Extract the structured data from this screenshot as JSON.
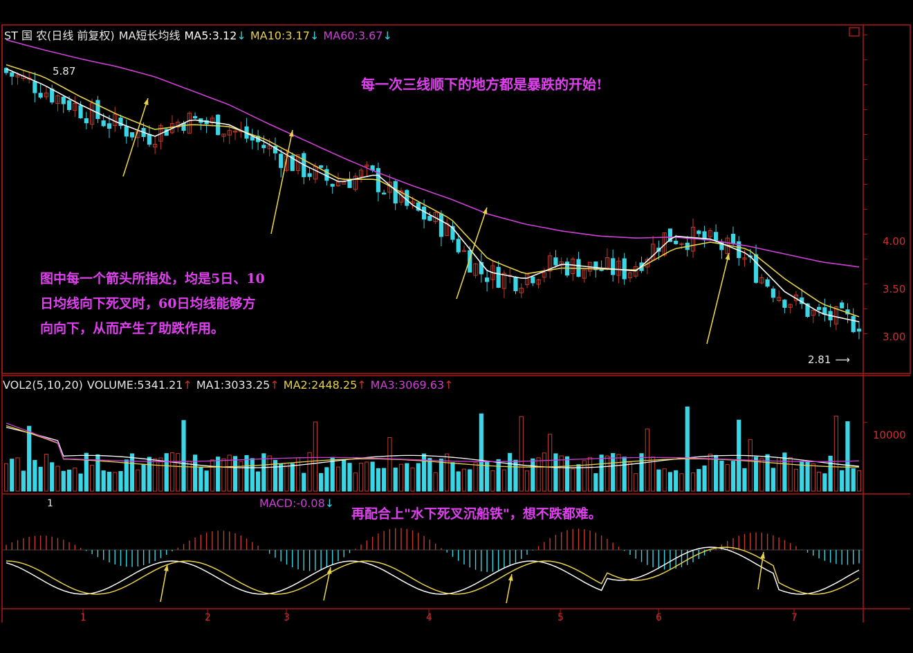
{
  "colors": {
    "background": "#000000",
    "frame": "#b01818",
    "up_candle": "#c83a2a",
    "down_candle": "#3ad6e6",
    "ma5": "#ffffff",
    "ma10": "#e8d24a",
    "ma60": "#d040d8",
    "arrow": "#e8d24a",
    "note_text": "#e040f0"
  },
  "price_header": {
    "name": "ST 国 农(日线 前复权)",
    "indicator": "MA短长均线",
    "ma5": "MA5:3.12",
    "ma10": "MA10:3.17",
    "ma60": "MA60:3.67",
    "down_icon": "↓"
  },
  "volume_header": {
    "name": "VOL2(5,10,20)",
    "volume": "VOLUME:5341.21",
    "ma1": "MA1:3033.25",
    "ma2": "MA2:2448.25",
    "ma3": "MA3:3069.63",
    "up_icon": "↑"
  },
  "macd_header": {
    "left_mark": "1",
    "macd": "MACD:-0.08",
    "down_icon": "↓"
  },
  "annotations": {
    "top_note": "每一次三线顺下的地方都是暴跌的开始!",
    "middle_note_lines": [
      "图中每一个箭头所指处，均是5日、10",
      "日均线向下死叉时，60日均线能够方",
      "向向下，从而产生了助跌作用。"
    ],
    "macd_note": "再配合上\"水下死叉沉船铁\"，想不跌都难。",
    "high_label": "5.87",
    "low_label": "2.81"
  },
  "price_axis": [
    "4.00",
    "3.50",
    "3.00"
  ],
  "volume_axis": [
    "10000"
  ],
  "date_axis": [
    "1",
    "2",
    "3",
    "4",
    "5",
    "6",
    "7"
  ],
  "chart_data": [
    {
      "type": "line",
      "name": "price",
      "x_labels": [
        "1",
        "2",
        "3",
        "4",
        "5",
        "6",
        "7"
      ],
      "series": [
        {
          "name": "MA5",
          "values": [
            5.66,
            5.5,
            5.3,
            5.12,
            4.98,
            5.15,
            5.1,
            4.92,
            4.7,
            4.52,
            4.6,
            4.28,
            4.08,
            3.62,
            3.55,
            3.7,
            3.66,
            3.63,
            3.98,
            3.95,
            3.8,
            3.42,
            3.2,
            3.12
          ]
        },
        {
          "name": "MA10",
          "values": [
            5.7,
            5.58,
            5.38,
            5.2,
            5.05,
            5.1,
            5.08,
            4.95,
            4.75,
            4.55,
            4.55,
            4.35,
            4.15,
            3.75,
            3.6,
            3.66,
            3.65,
            3.64,
            3.85,
            3.92,
            3.85,
            3.55,
            3.3,
            3.17
          ]
        },
        {
          "name": "MA60",
          "values": [
            5.95,
            5.85,
            5.76,
            5.68,
            5.58,
            5.44,
            5.3,
            5.12,
            4.95,
            4.78,
            4.62,
            4.48,
            4.35,
            4.2,
            4.1,
            4.03,
            3.98,
            3.96,
            3.97,
            3.94,
            3.88,
            3.8,
            3.72,
            3.67
          ]
        }
      ],
      "high": 5.87,
      "low": 2.81,
      "ylim": [
        2.6,
        6.1
      ],
      "yticks": [
        4.0,
        3.5,
        3.0
      ]
    },
    {
      "type": "bar",
      "name": "volume",
      "series": [
        {
          "name": "MA1",
          "value": 3033.25
        },
        {
          "name": "MA2",
          "value": 2448.25
        },
        {
          "name": "MA3",
          "value": 3069.63
        }
      ],
      "last_volume": 5341.21,
      "yticks": [
        10000
      ]
    },
    {
      "type": "line",
      "name": "MACD",
      "last_macd": -0.08
    }
  ]
}
